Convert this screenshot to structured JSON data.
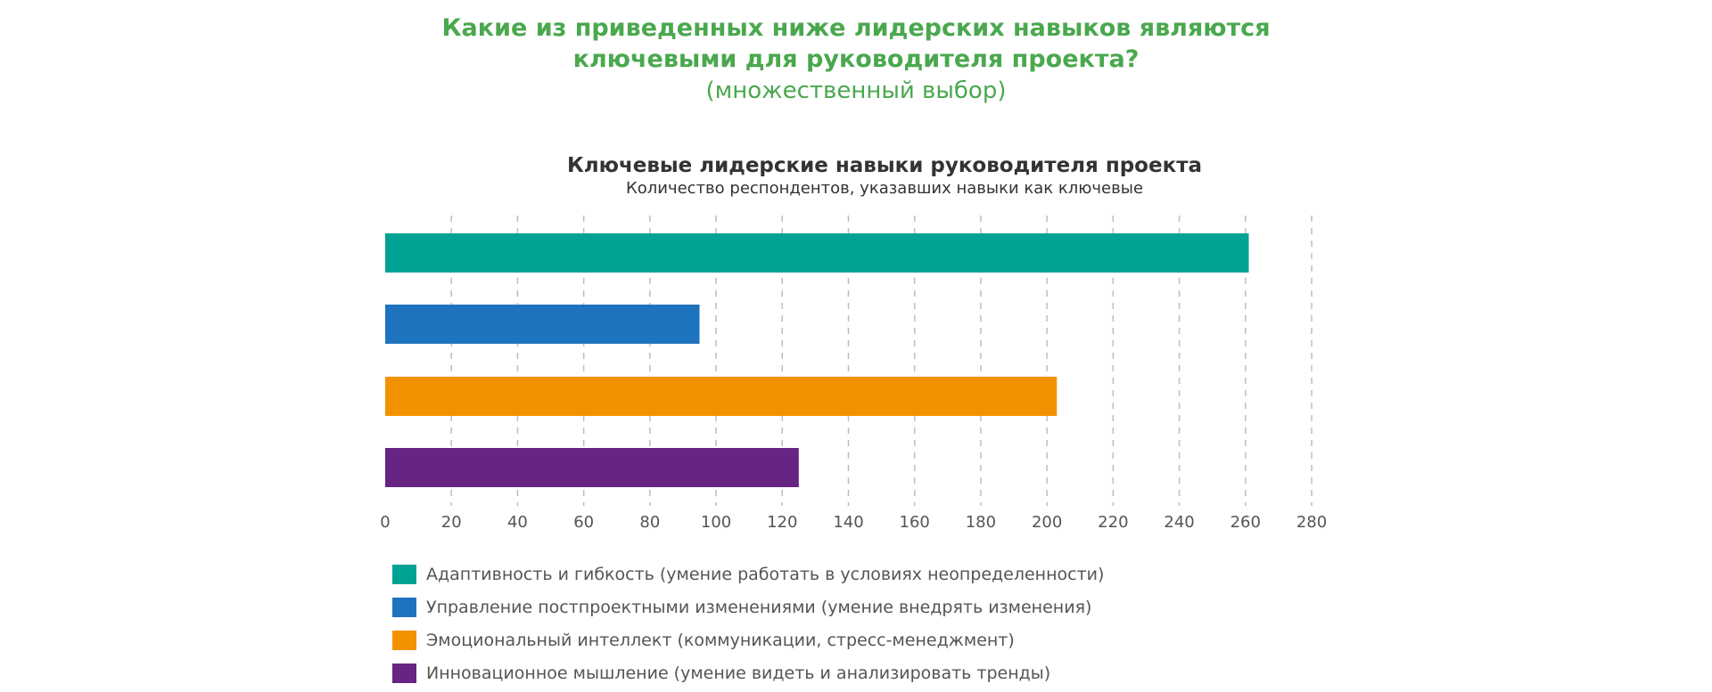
{
  "question": {
    "line1": "Какие из приведенных ниже лидерских навыков являются",
    "line2": "ключевыми для руководителя проекта?",
    "note": "(множественный выбор)"
  },
  "chart_data": {
    "type": "bar",
    "orientation": "horizontal",
    "title": "Ключевые лидерские навыки руководителя проекта",
    "subtitle": "Количество респондентов, указавших  навыки как ключевые",
    "xlim": [
      0,
      280
    ],
    "x_ticks": [
      "0",
      "20",
      "40",
      "60",
      "80",
      "100",
      "120",
      "140",
      "160",
      "180",
      "200",
      "220",
      "240",
      "260",
      "280"
    ],
    "grid": true,
    "legend_position": "bottom-left",
    "series": [
      {
        "name": "Адаптивность и гибкость (умение работать в условиях неопределенности)",
        "value": 261,
        "color": "#00a294"
      },
      {
        "name": "Управление постпроектными изменениями (умение внедрять изменения)",
        "value": 95,
        "color": "#1e73be"
      },
      {
        "name": "Эмоциональный интеллект (коммуникации, стресс-менеджмент)",
        "value": 203,
        "color": "#f39200"
      },
      {
        "name": "Инновационное мышление (умение видеть и анализировать тренды)",
        "value": 125,
        "color": "#662483"
      }
    ]
  }
}
